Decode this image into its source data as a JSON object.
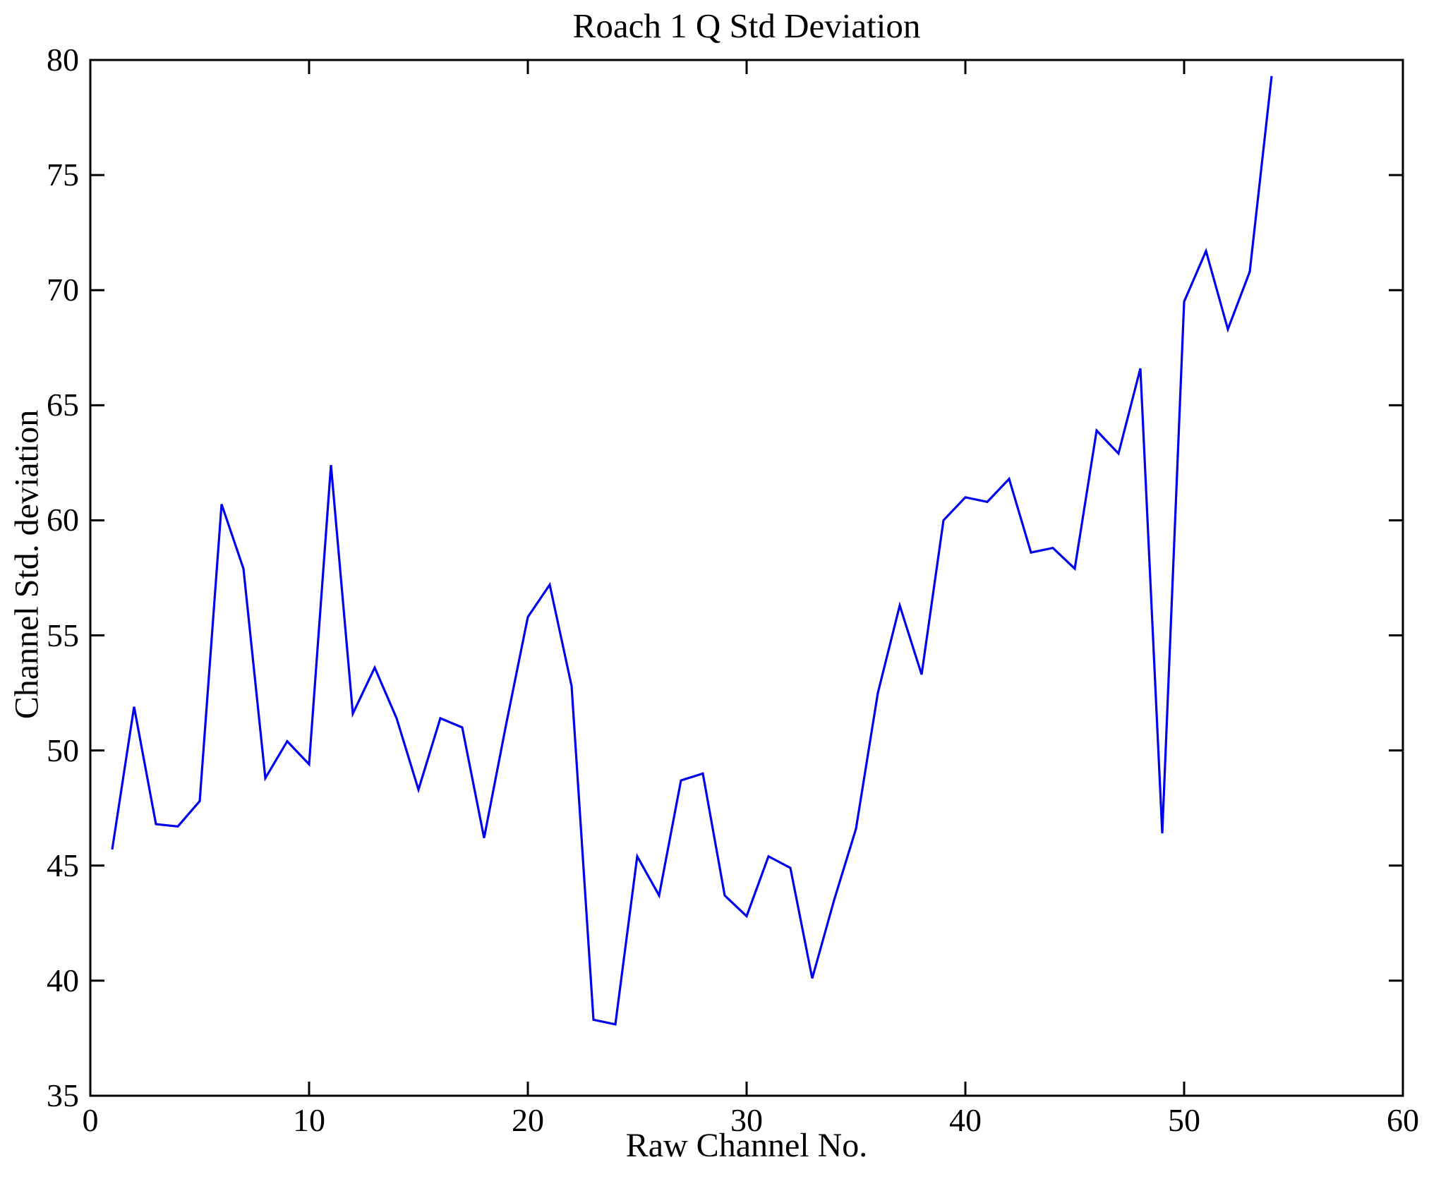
{
  "chart_data": {
    "type": "line",
    "title": "Roach 1 Q Std Deviation",
    "xlabel": "Raw Channel No.",
    "ylabel": "Channel Std. deviation",
    "xlim": [
      0,
      60
    ],
    "ylim": [
      35,
      80
    ],
    "xticks": [
      0,
      10,
      20,
      30,
      40,
      50,
      60
    ],
    "yticks": [
      35,
      40,
      45,
      50,
      55,
      60,
      65,
      70,
      75,
      80
    ],
    "grid": false,
    "box": true,
    "line_color": "#0000EE",
    "axis_color": "#000000",
    "x": [
      1,
      2,
      3,
      4,
      5,
      6,
      7,
      8,
      9,
      10,
      11,
      12,
      13,
      14,
      15,
      16,
      17,
      18,
      19,
      20,
      21,
      22,
      23,
      24,
      25,
      26,
      27,
      28,
      29,
      30,
      31,
      32,
      33,
      34,
      35,
      36,
      37,
      38,
      39,
      40,
      41,
      42,
      43,
      44,
      45,
      46,
      47,
      48,
      49,
      50,
      51,
      52,
      53,
      54
    ],
    "series": [
      {
        "name": "Channel Std. deviation",
        "values": [
          45.7,
          51.9,
          46.8,
          46.7,
          47.8,
          60.7,
          57.9,
          48.8,
          50.4,
          49.4,
          62.4,
          51.6,
          53.6,
          51.4,
          48.3,
          51.4,
          51.0,
          46.2,
          51.1,
          55.8,
          57.2,
          52.8,
          38.3,
          38.1,
          45.4,
          43.7,
          48.7,
          49.0,
          43.7,
          42.8,
          45.4,
          44.9,
          40.1,
          43.5,
          46.6,
          52.5,
          56.3,
          53.3,
          60.0,
          61.0,
          60.8,
          61.8,
          58.6,
          58.8,
          57.9,
          63.9,
          62.9,
          66.6,
          46.4,
          69.5,
          71.7,
          68.3,
          70.8,
          79.3
        ]
      }
    ]
  }
}
